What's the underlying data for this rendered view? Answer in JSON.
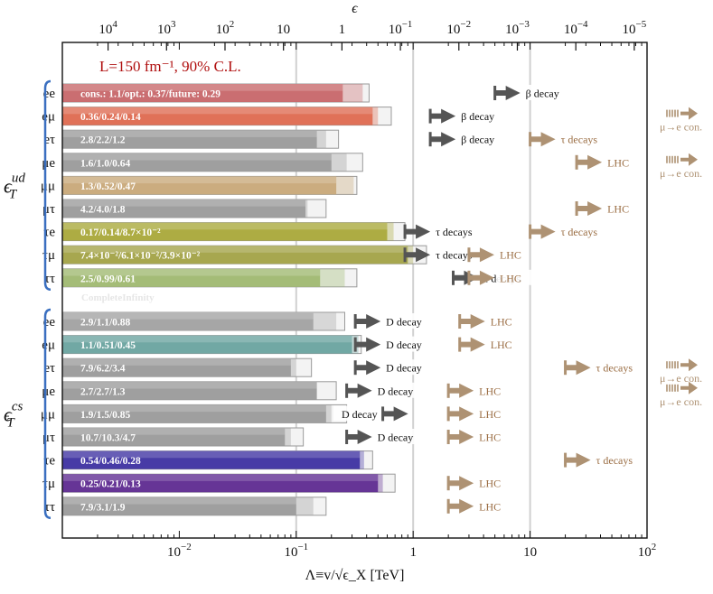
{
  "chart_data": {
    "type": "bar",
    "orientation": "horizontal",
    "title": "",
    "xlabel": "Λ≡v/√ϵ_X [TeV]",
    "top_axis_label": "ϵ",
    "xscale": "log",
    "xlim": [
      0.001,
      100
    ],
    "top_axis_ticks": [
      "10^4",
      "10^3",
      "10^2",
      "10",
      "1",
      "10^-1",
      "10^-2",
      "10^-3",
      "10^-4",
      "10^-5"
    ],
    "bottom_axis_ticks": [
      {
        "value": 0.01,
        "label": "10^-2"
      },
      {
        "value": 0.1,
        "label": "10^-1"
      },
      {
        "value": 1,
        "label": "1"
      },
      {
        "value": 10,
        "label": "10"
      },
      {
        "value": 100,
        "label": "10^2"
      }
    ],
    "legend_note": "L=150 fm⁻¹, 90% C.L.",
    "watermark": "CompleteInfinity",
    "colors": {
      "grey": "#9a9a9a",
      "ee_ud": "#c8676a",
      "emu_ud": "#de6a4f",
      "mumu_ud": "#c9a878",
      "taue_ud": "#a9a83a",
      "taumu_ud": "#a3a346",
      "tautau_ud": "#9fb970",
      "ee_cs": "#a2a2a2",
      "emu_cs": "#6aa4a0",
      "taue_cs": "#3e31a2",
      "taumu_cs": "#5e2a90",
      "dark_arrow": "#555555",
      "brown_arrow": "#ae9273",
      "group_brace": "#3a6fc0",
      "legend_text": "#b01010"
    },
    "groups": [
      {
        "label": "ϵ_T^ud",
        "rows": [
          {
            "label": "ee",
            "bar_text": "cons.: 1.1/opt.: 0.37/future: 0.29",
            "cons": 0.25,
            "opt": 0.37,
            "future": 0.42,
            "color": "#c8676a",
            "limits": [
              {
                "value": 5.0,
                "text": "β decay",
                "style": "dark"
              }
            ]
          },
          {
            "label": "eμ",
            "bar_text": "0.36/0.24/0.14",
            "cons": 0.45,
            "opt": 0.5,
            "future": 0.65,
            "color": "#de6a4f",
            "limits": [
              {
                "value": 1.4,
                "text": "β decay",
                "style": "dark"
              }
            ],
            "right_note": "μ→e con."
          },
          {
            "label": "eτ",
            "bar_text": "2.8/2.2/1.2",
            "cons": 0.15,
            "opt": 0.18,
            "future": 0.23,
            "color": "#9a9a9a",
            "limits": [
              {
                "value": 1.4,
                "text": "β decay",
                "style": "dark"
              },
              {
                "value": 10.0,
                "text": "τ decays",
                "style": "brown"
              }
            ]
          },
          {
            "label": "μe",
            "bar_text": "1.6/1.0/0.64",
            "cons": 0.2,
            "opt": 0.27,
            "future": 0.37,
            "color": "#9a9a9a",
            "limits": [
              {
                "value": 25.0,
                "text": "LHC",
                "style": "brown"
              }
            ],
            "right_note": "μ→e con."
          },
          {
            "label": "μμ",
            "bar_text": "1.3/0.52/0.47",
            "cons": 0.22,
            "opt": 0.31,
            "future": 0.33,
            "color": "#c9a878",
            "limits": []
          },
          {
            "label": "μτ",
            "bar_text": "4.2/4.0/1.8",
            "cons": 0.12,
            "opt": 0.125,
            "future": 0.18,
            "color": "#9a9a9a",
            "limits": [
              {
                "value": 25.0,
                "text": "LHC",
                "style": "brown"
              }
            ]
          },
          {
            "label": "τe",
            "bar_text": "0.17/0.14/8.7×10⁻²",
            "cons": 0.6,
            "opt": 0.68,
            "future": 0.85,
            "color": "#a9a83a",
            "limits": [
              {
                "value": 0.85,
                "text": "τ decays",
                "style": "dark"
              },
              {
                "value": 10.0,
                "text": "τ decays",
                "style": "brown"
              }
            ]
          },
          {
            "label": "τμ",
            "bar_text": "7.4×10⁻²/6.1×10⁻²/3.9×10⁻²",
            "cons": 0.9,
            "opt": 1.0,
            "future": 1.3,
            "color": "#a3a346",
            "limits": [
              {
                "value": 0.85,
                "text": "τ decays",
                "style": "dark"
              },
              {
                "value": 3.0,
                "text": "LHC",
                "style": "brown"
              }
            ]
          },
          {
            "label": "ττ",
            "bar_text": "2.5/0.99/0.61",
            "cons": 0.16,
            "opt": 0.26,
            "future": 0.33,
            "color": "#9fb970",
            "limits": [
              {
                "value": 2.2,
                "text": "τ decays",
                "style": "dark"
              },
              {
                "value": 3.0,
                "text": "LHC",
                "style": "brown"
              }
            ]
          }
        ]
      },
      {
        "label": "ϵ_T^cs",
        "rows": [
          {
            "label": "ee",
            "bar_text": "2.9/1.1/0.88",
            "cons": 0.14,
            "opt": 0.22,
            "future": 0.26,
            "color": "#a2a2a2",
            "limits": [
              {
                "value": 0.32,
                "text": "D decay",
                "style": "dark"
              },
              {
                "value": 2.5,
                "text": "LHC",
                "style": "brown"
              }
            ]
          },
          {
            "label": "eμ",
            "bar_text": "1.1/0.51/0.45",
            "cons": 0.3,
            "opt": 0.34,
            "future": 0.36,
            "color": "#6aa4a0",
            "limits": [
              {
                "value": 0.32,
                "text": "D decay",
                "style": "dark"
              },
              {
                "value": 2.5,
                "text": "LHC",
                "style": "brown"
              }
            ]
          },
          {
            "label": "eτ",
            "bar_text": "7.9/6.2/3.4",
            "cons": 0.09,
            "opt": 0.1,
            "future": 0.135,
            "color": "#9a9a9a",
            "limits": [
              {
                "value": 0.32,
                "text": "D decay",
                "style": "dark"
              },
              {
                "value": 20.0,
                "text": "τ decays",
                "style": "brown"
              }
            ],
            "right_note": "μ→e con."
          },
          {
            "label": "μe",
            "bar_text": "2.7/2.7/1.3",
            "cons": 0.15,
            "opt": 0.15,
            "future": 0.22,
            "color": "#9a9a9a",
            "limits": [
              {
                "value": 0.27,
                "text": "D decay",
                "style": "dark"
              },
              {
                "value": 2.0,
                "text": "LHC",
                "style": "brown"
              }
            ],
            "right_note": "μ→e con."
          },
          {
            "label": "μμ",
            "bar_text": "1.9/1.5/0.85",
            "cons": 0.18,
            "opt": 0.2,
            "future": 0.27,
            "color": "#9a9a9a",
            "limits": [
              {
                "value": 0.55,
                "text": "D decay",
                "style": "dark",
                "label_side": "left"
              },
              {
                "value": 2.0,
                "text": "LHC",
                "style": "brown"
              }
            ]
          },
          {
            "label": "μτ",
            "bar_text": "10.7/10.3/4.7",
            "cons": 0.08,
            "opt": 0.09,
            "future": 0.115,
            "color": "#9a9a9a",
            "limits": [
              {
                "value": 0.27,
                "text": "D decay",
                "style": "dark"
              },
              {
                "value": 2.0,
                "text": "LHC",
                "style": "brown"
              }
            ]
          },
          {
            "label": "τe",
            "bar_text": "0.54/0.46/0.28",
            "cons": 0.35,
            "opt": 0.38,
            "future": 0.45,
            "color": "#3e31a2",
            "limits": [
              {
                "value": 20.0,
                "text": "τ decays",
                "style": "brown"
              }
            ]
          },
          {
            "label": "τμ",
            "bar_text": "0.25/0.21/0.13",
            "cons": 0.5,
            "opt": 0.55,
            "future": 0.7,
            "color": "#5e2a90",
            "limits": [
              {
                "value": 2.0,
                "text": "LHC",
                "style": "brown"
              }
            ]
          },
          {
            "label": "ττ",
            "bar_text": "7.9/3.1/1.9",
            "cons": 0.1,
            "opt": 0.14,
            "future": 0.18,
            "color": "#9a9a9a",
            "limits": [
              {
                "value": 2.0,
                "text": "LHC",
                "style": "brown"
              }
            ]
          }
        ]
      }
    ]
  }
}
